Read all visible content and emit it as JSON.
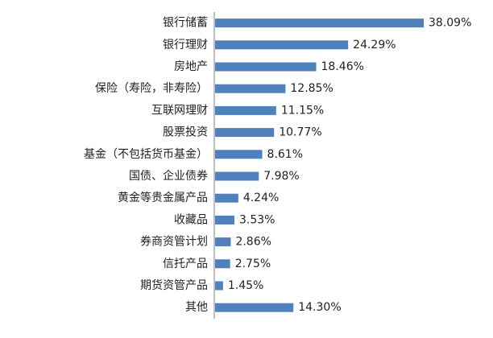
{
  "chart_data": {
    "type": "bar",
    "orientation": "horizontal",
    "title": "",
    "xlabel": "",
    "ylabel": "",
    "grid": false,
    "legend": "none",
    "bar_color": "#4f81bd",
    "axis_color": "#7f7f7f",
    "xlim": [
      0,
      40
    ],
    "categories": [
      "银行储蓄",
      "银行理财",
      "房地产",
      "保险（寿险，非寿险）",
      "互联网理财",
      "股票投资",
      "基金（不包括货币基金）",
      "国债、企业债券",
      "黄金等贵金属产品",
      "收藏品",
      "券商资管计划",
      "信托产品",
      "期货资管产品",
      "其他"
    ],
    "values": [
      38.09,
      24.29,
      18.46,
      12.85,
      11.15,
      10.77,
      8.61,
      7.98,
      4.24,
      3.53,
      2.86,
      2.75,
      1.45,
      14.3
    ],
    "value_labels": [
      "38.09%",
      "24.29%",
      "18.46%",
      "12.85%",
      "11.15%",
      "10.77%",
      "8.61%",
      "7.98%",
      "4.24%",
      "3.53%",
      "2.86%",
      "2.75%",
      "1.45%",
      "14.30%"
    ]
  }
}
